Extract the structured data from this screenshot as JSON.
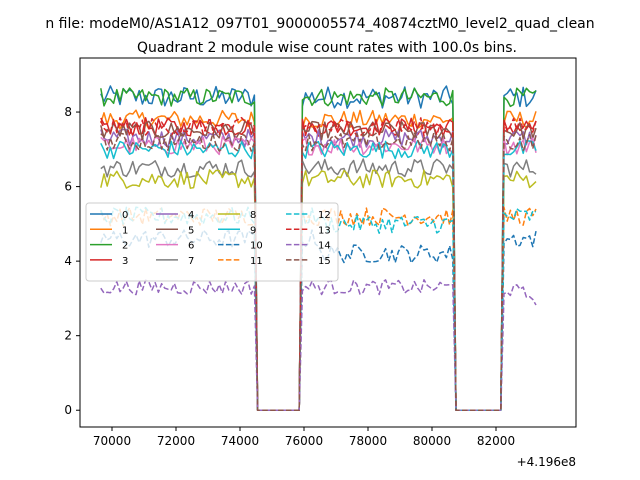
{
  "chart_data": {
    "type": "line",
    "suptitle": "n file: modeM0/AS1A12_097T01_9000005574_40874cztM0_level2_quad_clean",
    "title": "Quadrant 2 module wise count rates with 100.0s bins.",
    "xlabel": "",
    "ylabel": "",
    "x_offset_label": "+4.196e8",
    "xlim": [
      69000,
      84500
    ],
    "ylim": [
      -0.45,
      9.45
    ],
    "x_ticks": [
      70000,
      72000,
      74000,
      76000,
      78000,
      80000,
      82000
    ],
    "y_ticks": [
      0,
      2,
      4,
      6,
      8
    ],
    "x_tick_labels": [
      "70000",
      "72000",
      "74000",
      "76000",
      "78000",
      "80000",
      "82000"
    ],
    "y_tick_labels": [
      "0",
      "2",
      "4",
      "6",
      "8"
    ],
    "gti_segments": [
      [
        69650,
        74500
      ],
      [
        75900,
        80700
      ],
      [
        82200,
        83300
      ]
    ],
    "gaps": [
      [
        74700,
        75800
      ],
      [
        80900,
        82100
      ]
    ],
    "series": [
      {
        "name": "0",
        "color": "#1f77b4",
        "style": "solid",
        "level": 8.4,
        "noise": 0.3
      },
      {
        "name": "1",
        "color": "#ff7f0e",
        "style": "solid",
        "level": 7.8,
        "noise": 0.25
      },
      {
        "name": "2",
        "color": "#2ca02c",
        "style": "solid",
        "level": 8.4,
        "noise": 0.25
      },
      {
        "name": "3",
        "color": "#d62728",
        "style": "solid",
        "level": 7.6,
        "noise": 0.25
      },
      {
        "name": "4",
        "color": "#9467bd",
        "style": "solid",
        "level": 7.3,
        "noise": 0.25
      },
      {
        "name": "5",
        "color": "#8c564b",
        "style": "solid",
        "level": 7.5,
        "noise": 0.25
      },
      {
        "name": "6",
        "color": "#e377c2",
        "style": "solid",
        "level": 7.1,
        "noise": 0.25
      },
      {
        "name": "7",
        "color": "#7f7f7f",
        "style": "solid",
        "level": 6.5,
        "noise": 0.25
      },
      {
        "name": "8",
        "color": "#bcbd22",
        "style": "solid",
        "level": 6.2,
        "noise": 0.25
      },
      {
        "name": "9",
        "color": "#17becf",
        "style": "solid",
        "level": 7.0,
        "noise": 0.25
      },
      {
        "name": "10",
        "color": "#1f77b4",
        "style": "dashed",
        "level": 4.6,
        "noise": 0.25
      },
      {
        "name": "11",
        "color": "#ff7f0e",
        "style": "dashed",
        "level": 5.2,
        "noise": 0.25
      },
      {
        "name": "12",
        "color": "#17becf",
        "style": "dashed",
        "level": 5.2,
        "noise": 0.25
      },
      {
        "name": "13",
        "color": "#d62728",
        "style": "dashed",
        "level": 7.6,
        "noise": 0.25
      },
      {
        "name": "14",
        "color": "#9467bd",
        "style": "dashed",
        "level": 3.3,
        "noise": 0.2
      },
      {
        "name": "15",
        "color": "#8c564b",
        "style": "dashed",
        "level": 7.2,
        "noise": 0.25
      }
    ],
    "legend": {
      "location": "center-left",
      "columns": 4,
      "items": [
        "0",
        "1",
        "2",
        "3",
        "4",
        "5",
        "6",
        "7",
        "8",
        "9",
        "10",
        "11",
        "12",
        "13",
        "14",
        "15"
      ]
    }
  }
}
